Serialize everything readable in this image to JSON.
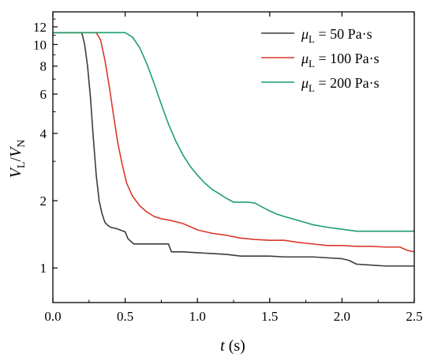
{
  "chart_data": {
    "type": "line",
    "xlabel": {
      "var": "t",
      "unit": " (s)"
    },
    "ylabel": {
      "var": "V",
      "sub1": "L",
      "sep": "/",
      "var2": "V",
      "sub2": "N"
    },
    "xlim": [
      0,
      2.5
    ],
    "ylim": [
      0.7,
      14
    ],
    "yscale": "log",
    "xticks": [
      0.0,
      0.5,
      1.0,
      1.5,
      2.0,
      2.5
    ],
    "xtick_labels": [
      "0.0",
      "0.5",
      "1.0",
      "1.5",
      "2.0",
      "2.5"
    ],
    "yticks": [
      1,
      2,
      4,
      6,
      8,
      10,
      12
    ],
    "ytick_labels": [
      "1",
      "2",
      "4",
      "6",
      "8",
      "10",
      "12"
    ],
    "grid": false,
    "legend_position": "top-right",
    "series": [
      {
        "name": "μL = 50 Pa·s",
        "legend": {
          "sym": "μ",
          "sub": "L",
          "text": " = 50 Pa·s"
        },
        "color": "#3c3c3c",
        "x": [
          0,
          0.2,
          0.22,
          0.24,
          0.26,
          0.28,
          0.3,
          0.32,
          0.34,
          0.36,
          0.38,
          0.4,
          0.44,
          0.5,
          0.52,
          0.56,
          0.6,
          0.7,
          0.8,
          0.82,
          0.9,
          1.0,
          1.1,
          1.2,
          1.3,
          1.4,
          1.5,
          1.6,
          1.7,
          1.8,
          1.9,
          2.0,
          2.05,
          2.1,
          2.2,
          2.3,
          2.4,
          2.5
        ],
        "y": [
          11.3,
          11.3,
          10.0,
          8.0,
          5.8,
          3.8,
          2.6,
          2.0,
          1.75,
          1.6,
          1.55,
          1.52,
          1.5,
          1.45,
          1.35,
          1.28,
          1.28,
          1.28,
          1.28,
          1.18,
          1.18,
          1.17,
          1.16,
          1.15,
          1.13,
          1.13,
          1.13,
          1.12,
          1.12,
          1.12,
          1.11,
          1.1,
          1.08,
          1.04,
          1.03,
          1.02,
          1.02,
          1.02
        ]
      },
      {
        "name": "μL = 100 Pa·s",
        "legend": {
          "sym": "μ",
          "sub": "L",
          "text": " = 100 Pa·s"
        },
        "color": "#d93a2b",
        "x": [
          0,
          0.3,
          0.33,
          0.36,
          0.39,
          0.42,
          0.45,
          0.48,
          0.51,
          0.55,
          0.6,
          0.65,
          0.7,
          0.75,
          0.8,
          0.9,
          1.0,
          1.1,
          1.2,
          1.3,
          1.4,
          1.5,
          1.6,
          1.7,
          1.8,
          1.9,
          2.0,
          2.1,
          2.2,
          2.3,
          2.4,
          2.45,
          2.5
        ],
        "y": [
          11.3,
          11.3,
          10.5,
          8.5,
          6.5,
          4.8,
          3.6,
          2.9,
          2.4,
          2.1,
          1.9,
          1.78,
          1.7,
          1.66,
          1.64,
          1.58,
          1.48,
          1.43,
          1.4,
          1.36,
          1.34,
          1.33,
          1.33,
          1.3,
          1.28,
          1.26,
          1.26,
          1.25,
          1.25,
          1.24,
          1.24,
          1.2,
          1.18
        ]
      },
      {
        "name": "μL = 200 Pa·s",
        "legend": {
          "sym": "μ",
          "sub": "L",
          "text": " = 200 Pa·s"
        },
        "color": "#1f9e6a",
        "x": [
          0,
          0.5,
          0.55,
          0.6,
          0.65,
          0.7,
          0.75,
          0.8,
          0.85,
          0.9,
          0.95,
          1.0,
          1.05,
          1.1,
          1.15,
          1.2,
          1.25,
          1.35,
          1.4,
          1.45,
          1.5,
          1.55,
          1.6,
          1.7,
          1.8,
          1.9,
          2.0,
          2.1,
          2.2,
          2.3,
          2.4,
          2.5
        ],
        "y": [
          11.3,
          11.3,
          10.8,
          9.7,
          8.2,
          6.7,
          5.4,
          4.4,
          3.7,
          3.2,
          2.85,
          2.6,
          2.4,
          2.25,
          2.15,
          2.05,
          1.97,
          1.97,
          1.95,
          1.87,
          1.8,
          1.74,
          1.7,
          1.63,
          1.56,
          1.52,
          1.49,
          1.46,
          1.46,
          1.46,
          1.46,
          1.46
        ]
      }
    ]
  }
}
